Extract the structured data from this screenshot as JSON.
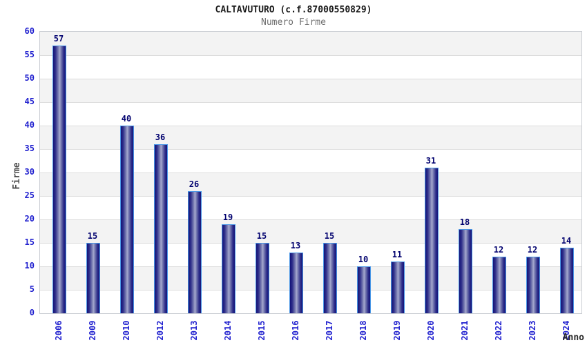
{
  "header": {
    "title": "CALTAVUTURO (c.f.87000550829)",
    "subtitle": "Numero Firme"
  },
  "chart_data": {
    "type": "bar",
    "title": "CALTAVUTURO (c.f.87000550829)",
    "subtitle": "Numero Firme",
    "xlabel": "Anno",
    "ylabel": "Firme",
    "categories": [
      "2006",
      "2009",
      "2010",
      "2012",
      "2013",
      "2014",
      "2015",
      "2016",
      "2017",
      "2018",
      "2019",
      "2020",
      "2021",
      "2022",
      "2023",
      "2024"
    ],
    "values": [
      57,
      15,
      40,
      36,
      26,
      19,
      15,
      13,
      15,
      10,
      11,
      31,
      18,
      12,
      12,
      14
    ],
    "ylim": [
      0,
      60
    ],
    "ytick_step": 5,
    "yticks": [
      0,
      5,
      10,
      15,
      20,
      25,
      30,
      35,
      40,
      45,
      50,
      55,
      60
    ],
    "grid": true,
    "legend": "none",
    "colors": {
      "bar_edge": "#4a97e6",
      "bar_dark": "#131378",
      "bar_light": "#a6a9cf",
      "tick_label": "#2121cf",
      "value_label": "#00006e",
      "band_gray": "#f3f3f3",
      "gridline": "#dcdcdc",
      "plot_border": "#c9ccd2",
      "title": "#1a1a1a",
      "subtitle": "#6e6e6e",
      "axis_title": "#4d4d4d"
    }
  }
}
